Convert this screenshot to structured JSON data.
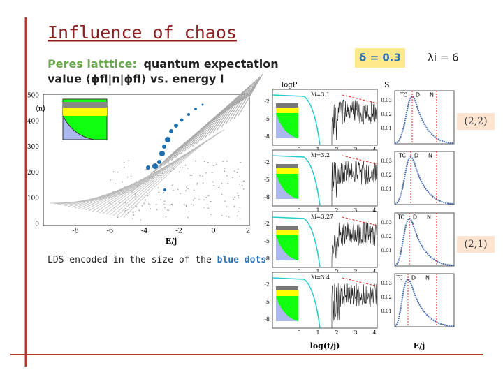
{
  "title": "Influence of chaos",
  "subtitle": {
    "lead": "Peres latttice:",
    "line1": "quantum expectation",
    "line2": "value ⟨ϕfl|n|ϕfl⟩ vs. energy l"
  },
  "delta_box": "δ = 0.3",
  "lambda_label": "λi = 6",
  "main_plot": {
    "y_label": "⟨n⟩",
    "x_label": "E/j",
    "yticks": [
      "500",
      "400",
      "300",
      "200",
      "100",
      "0"
    ],
    "xticks": [
      "-8",
      "-6",
      "-4",
      "-2",
      "0",
      "2"
    ]
  },
  "caption": {
    "text": "LDS encoded in the size of the",
    "highlight": "blue dots"
  },
  "tags": [
    "(2,2)",
    "(2,1)"
  ],
  "panels": {
    "time_header": "logP",
    "s_header": "S",
    "row_lambdas": [
      "λi=3.1",
      "λi=3.2",
      "λi=3.27",
      "λi=3.4"
    ],
    "time_yticks": [
      "-2",
      "-5",
      "-8"
    ],
    "time_xticks": [
      "0",
      "1",
      "2",
      "3",
      "4"
    ],
    "s_yticks": [
      "0.03",
      "0.02",
      "0.01"
    ],
    "s_markers": [
      "TC",
      "D",
      "N"
    ],
    "time_x_label": "log(t/j)",
    "s_x_label": "E/j"
  }
}
